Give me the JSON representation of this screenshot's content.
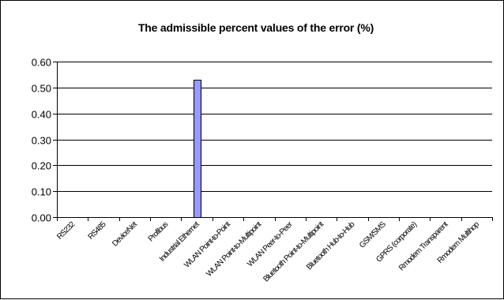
{
  "chart_data": {
    "type": "bar",
    "title": "The admissible percent values of the error (%)",
    "xlabel": "",
    "ylabel": "",
    "ylim": [
      0,
      0.6
    ],
    "yticks": [
      0.0,
      0.1,
      0.2,
      0.3,
      0.4,
      0.5,
      0.6
    ],
    "ytick_labels": [
      "0.00",
      "0.10",
      "0.20",
      "0.30",
      "0.40",
      "0.50",
      "0.60"
    ],
    "grid": true,
    "legend": "none",
    "categories": [
      "RS232",
      "RS485",
      "DeviceNet",
      "Profibus",
      "Industrial Ethernet",
      "WLAN Point-to-Point",
      "WLAN Point-to-Multipoint",
      "WLAN Peer-to-Peer",
      "Bluetooth Point-to-Multipoint",
      "Bluetooth Hub-to-Hub",
      "GSM/SMS",
      "GPRS (corporate)",
      "Rmodem Transparent",
      "Rmodem Multihop"
    ],
    "values": [
      0,
      0,
      0,
      0,
      0.53,
      0,
      0,
      0,
      0,
      0,
      0,
      0,
      0,
      0
    ],
    "colors": {
      "bar_fill": "#9999ff",
      "bar_stroke": "#000000",
      "grid": "#000000",
      "axis": "#000000"
    }
  }
}
